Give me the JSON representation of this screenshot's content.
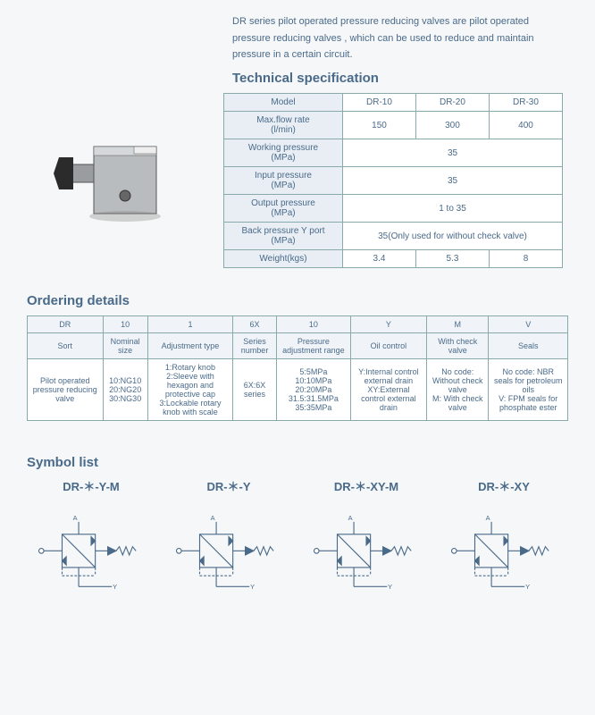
{
  "intro": "DR series pilot operated pressure reducing valves are pilot operated pressure reducing valves , which can be used to reduce and maintain pressure in a certain circuit.",
  "spec_title": "Technical specification",
  "spec_table": {
    "rows": [
      {
        "label": "Model",
        "cells": [
          "DR-10",
          "DR-20",
          "DR-30"
        ]
      },
      {
        "label": "Max.flow rate\n(l/min)",
        "cells": [
          "150",
          "300",
          "400"
        ]
      },
      {
        "label": "Working pressure\n(MPa)",
        "cells_merged": "35"
      },
      {
        "label": "Input pressure\n(MPa)",
        "cells_merged": "35"
      },
      {
        "label": "Output pressure\n(MPa)",
        "cells_merged": "1 to 35"
      },
      {
        "label": "Back pressure Y port\n(MPa)",
        "cells_merged": "35(Only used for without check valve)"
      },
      {
        "label": "Weight(kgs)",
        "cells": [
          "3.4",
          "5.3",
          "8"
        ]
      }
    ]
  },
  "ordering_title": "Ordering details",
  "order_table": {
    "codes": [
      "DR",
      "10",
      "1",
      "6X",
      "10",
      "Y",
      "M",
      "V"
    ],
    "headers": [
      "Sort",
      "Nominal size",
      "Adjustment type",
      "Series number",
      "Pressure adjustment range",
      "Oil control",
      "With check valve",
      "Seals"
    ],
    "details": [
      "Pilot operated pressure reducing valve",
      "10:NG10\n20:NG20\n30:NG30",
      "1:Rotary knob\n2:Sleeve with hexagon and protective cap\n3:Lockable rotary knob with scale",
      "6X:6X series",
      "5:5MPa\n10:10MPa\n20:20MPa\n31.5:31.5MPa\n35:35MPa",
      "Y:Internal control external drain\nXY:External control external drain",
      "No code: Without check valve\nM: With check valve",
      "No code: NBR seals for petroleum oils\nV: FPM seals for phosphate ester"
    ]
  },
  "symbol_title": "Symbol list",
  "symbols": [
    {
      "label": "DR-＊-Y-M"
    },
    {
      "label": "DR-＊-Y"
    },
    {
      "label": "DR-＊-XY-M"
    },
    {
      "label": "DR-＊-XY"
    }
  ],
  "colors": {
    "text": "#4a6a8a",
    "border": "#88aaaa",
    "header_bg": "#e8eef4",
    "page_bg": "#f6f7f8"
  }
}
